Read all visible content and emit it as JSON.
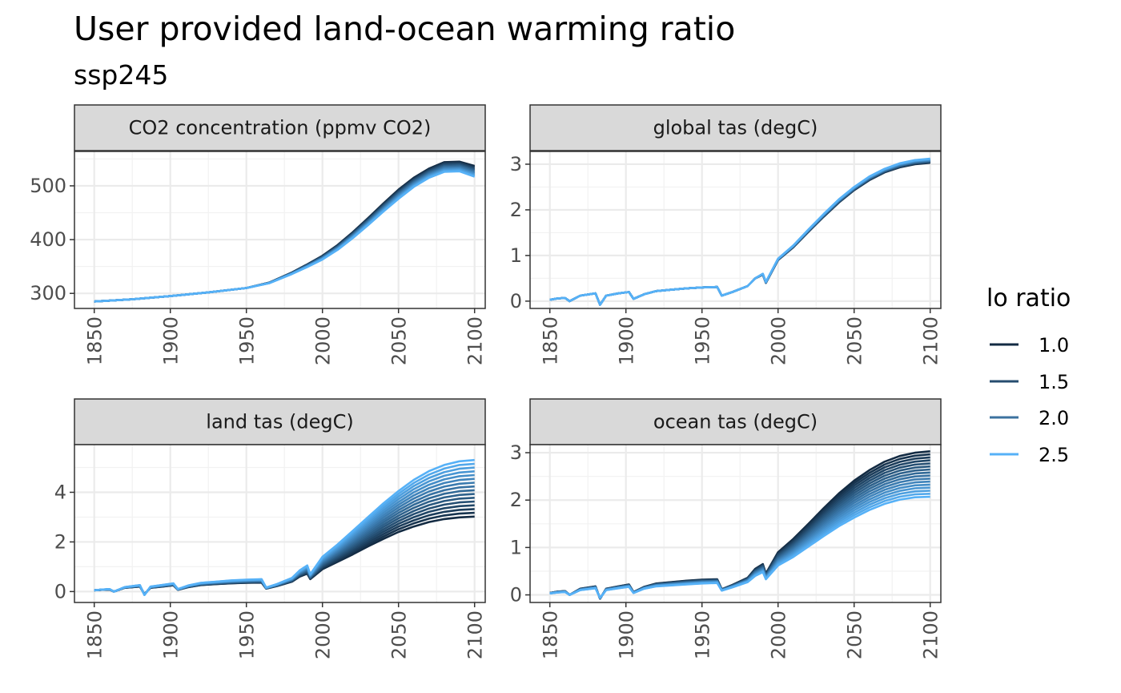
{
  "title": "User provided land-ocean warming ratio",
  "subtitle": "ssp245",
  "legend": {
    "title": "lo ratio",
    "placement": "right",
    "entries": [
      {
        "label": "1.0",
        "color": "#132B43"
      },
      {
        "label": "1.5",
        "color": "#264C6F"
      },
      {
        "label": "2.0",
        "color": "#3C729F"
      },
      {
        "label": "2.5",
        "color": "#56B1F7"
      }
    ]
  },
  "colors": {
    "low": "#132B43",
    "high": "#56B1F7",
    "strip_bg": "#D9D9D9",
    "grid": "#EBEBEB"
  },
  "chart_data": [
    {
      "type": "line",
      "title": "CO2 concentration (ppmv CO2)",
      "xlim": [
        1837,
        2107
      ],
      "ylim": [
        272,
        564
      ],
      "xticks": [
        1850,
        1900,
        1950,
        2000,
        2050,
        2100
      ],
      "yticks": [
        300,
        400,
        500
      ],
      "grid": true,
      "series_count": 11,
      "ratio_range": [
        1.0,
        2.5
      ],
      "x": [
        1850,
        1875,
        1900,
        1925,
        1950,
        1965,
        1980,
        1990,
        2000,
        2010,
        2020,
        2030,
        2040,
        2050,
        2060,
        2070,
        2080,
        2090,
        2100
      ],
      "low_ratio_values": [
        285,
        289,
        295,
        302,
        310,
        320,
        339,
        354,
        370,
        390,
        414,
        440,
        467,
        493,
        515,
        532,
        544,
        545,
        537
      ],
      "high_ratio_values": [
        285,
        289,
        295,
        302,
        310,
        319,
        336,
        349,
        363,
        381,
        403,
        427,
        452,
        476,
        498,
        515,
        526,
        527,
        517
      ]
    },
    {
      "type": "line",
      "title": "global tas (degC)",
      "xlim": [
        1837,
        2107
      ],
      "ylim": [
        -0.16,
        3.28
      ],
      "xticks": [
        1850,
        1900,
        1950,
        2000,
        2050,
        2100
      ],
      "yticks": [
        0,
        1,
        2,
        3
      ],
      "grid": true,
      "series_count": 11,
      "ratio_range": [
        1.0,
        2.5
      ],
      "x": [
        1850,
        1855,
        1860,
        1863,
        1870,
        1880,
        1883,
        1887,
        1895,
        1902,
        1905,
        1912,
        1920,
        1930,
        1940,
        1950,
        1960,
        1963,
        1970,
        1980,
        1985,
        1990,
        1992,
        2000,
        2010,
        2020,
        2030,
        2040,
        2050,
        2060,
        2070,
        2080,
        2090,
        2100
      ],
      "low_ratio_values": [
        0.03,
        0.06,
        0.07,
        0.0,
        0.12,
        0.17,
        -0.08,
        0.12,
        0.17,
        0.2,
        0.05,
        0.15,
        0.22,
        0.25,
        0.28,
        0.3,
        0.31,
        0.12,
        0.2,
        0.33,
        0.5,
        0.58,
        0.4,
        0.9,
        1.18,
        1.52,
        1.85,
        2.16,
        2.43,
        2.65,
        2.82,
        2.93,
        3.0,
        3.03
      ],
      "high_ratio_values": [
        0.03,
        0.06,
        0.07,
        0.0,
        0.12,
        0.17,
        -0.08,
        0.12,
        0.17,
        0.2,
        0.05,
        0.15,
        0.22,
        0.25,
        0.28,
        0.3,
        0.31,
        0.12,
        0.2,
        0.33,
        0.5,
        0.6,
        0.42,
        0.93,
        1.22,
        1.57,
        1.91,
        2.23,
        2.5,
        2.73,
        2.9,
        3.02,
        3.09,
        3.12
      ]
    },
    {
      "type": "line",
      "title": "land tas (degC)",
      "xlim": [
        1837,
        2107
      ],
      "ylim": [
        -0.44,
        5.92
      ],
      "xticks": [
        1850,
        1900,
        1950,
        2000,
        2050,
        2100
      ],
      "yticks": [
        0,
        2,
        4
      ],
      "grid": true,
      "series_count": 16,
      "ratio_range": [
        1.0,
        2.5
      ],
      "x": [
        1850,
        1855,
        1860,
        1863,
        1870,
        1880,
        1883,
        1887,
        1895,
        1902,
        1905,
        1912,
        1920,
        1930,
        1940,
        1950,
        1960,
        1963,
        1970,
        1980,
        1985,
        1990,
        1992,
        2000,
        2010,
        2020,
        2030,
        2040,
        2050,
        2060,
        2070,
        2080,
        2090,
        2100
      ],
      "low_ratio_values": [
        0.05,
        0.07,
        0.08,
        0.0,
        0.15,
        0.2,
        -0.1,
        0.15,
        0.2,
        0.25,
        0.07,
        0.18,
        0.26,
        0.3,
        0.33,
        0.35,
        0.36,
        0.12,
        0.22,
        0.4,
        0.6,
        0.72,
        0.5,
        0.9,
        1.2,
        1.5,
        1.82,
        2.12,
        2.4,
        2.62,
        2.8,
        2.92,
        2.99,
        3.02
      ],
      "high_ratio_values": [
        0.05,
        0.08,
        0.1,
        0.0,
        0.18,
        0.26,
        -0.14,
        0.2,
        0.27,
        0.33,
        0.1,
        0.25,
        0.35,
        0.4,
        0.45,
        0.48,
        0.5,
        0.16,
        0.3,
        0.55,
        0.85,
        1.05,
        0.7,
        1.4,
        1.9,
        2.45,
        3.0,
        3.55,
        4.05,
        4.5,
        4.85,
        5.1,
        5.25,
        5.3
      ]
    },
    {
      "type": "line",
      "title": "ocean tas (degC)",
      "xlim": [
        1837,
        2107
      ],
      "ylim": [
        -0.16,
        3.17
      ],
      "xticks": [
        1850,
        1900,
        1950,
        2000,
        2050,
        2100
      ],
      "yticks": [
        0,
        1,
        2,
        3
      ],
      "grid": true,
      "series_count": 16,
      "ratio_range": [
        1.0,
        2.5
      ],
      "x": [
        1850,
        1855,
        1860,
        1863,
        1870,
        1880,
        1883,
        1887,
        1895,
        1902,
        1905,
        1912,
        1920,
        1930,
        1940,
        1950,
        1960,
        1963,
        1970,
        1980,
        1985,
        1990,
        1992,
        2000,
        2010,
        2020,
        2030,
        2040,
        2050,
        2060,
        2070,
        2080,
        2090,
        2100
      ],
      "low_ratio_values": [
        0.04,
        0.07,
        0.08,
        0.0,
        0.13,
        0.18,
        -0.08,
        0.13,
        0.18,
        0.22,
        0.06,
        0.17,
        0.24,
        0.27,
        0.3,
        0.32,
        0.33,
        0.12,
        0.21,
        0.36,
        0.55,
        0.65,
        0.45,
        0.9,
        1.18,
        1.5,
        1.83,
        2.14,
        2.41,
        2.63,
        2.81,
        2.93,
        3.0,
        3.03
      ],
      "high_ratio_values": [
        0.03,
        0.05,
        0.06,
        0.0,
        0.1,
        0.14,
        -0.06,
        0.1,
        0.14,
        0.17,
        0.04,
        0.13,
        0.18,
        0.2,
        0.22,
        0.24,
        0.25,
        0.09,
        0.16,
        0.27,
        0.4,
        0.48,
        0.33,
        0.62,
        0.8,
        1.02,
        1.24,
        1.45,
        1.63,
        1.79,
        1.92,
        2.01,
        2.06,
        2.07
      ]
    }
  ]
}
